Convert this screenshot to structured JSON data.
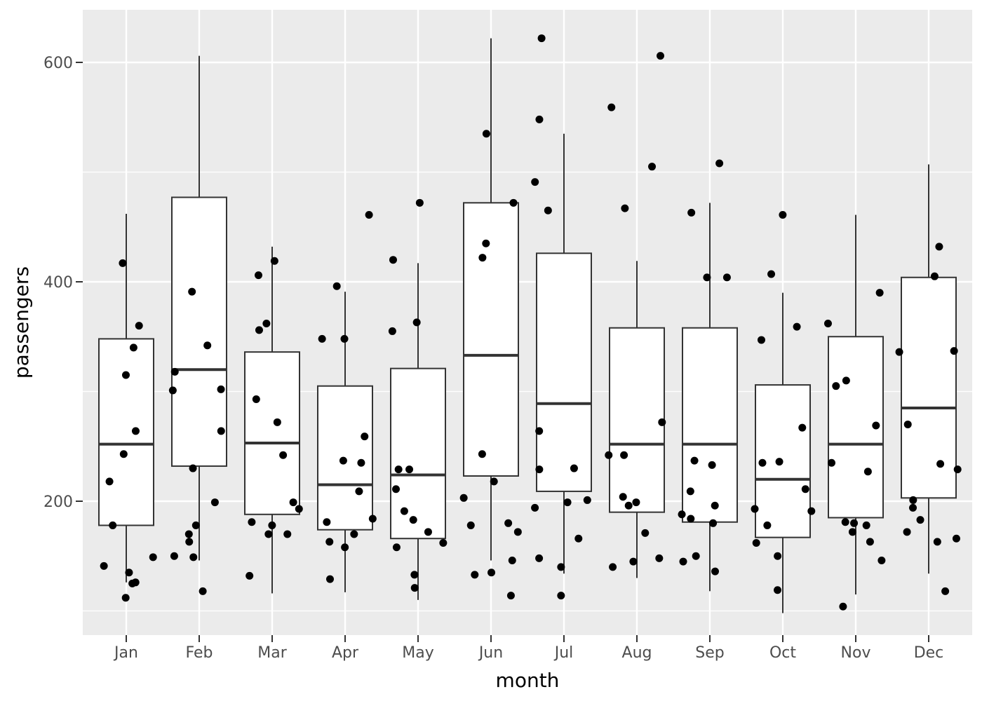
{
  "chart_data": {
    "type": "box",
    "xlabel": "month",
    "ylabel": "passengers",
    "y_ticks": [
      200,
      400,
      600
    ],
    "grid": true,
    "colors": {
      "panel_background": "#ebebeb",
      "gridline": "#ffffff",
      "box_fill": "#ffffff",
      "box_stroke": "#333333",
      "point": "#000000"
    },
    "categories": [
      "Jan",
      "Feb",
      "Mar",
      "Apr",
      "May",
      "Jun",
      "Jul",
      "Aug",
      "Sep",
      "Oct",
      "Nov",
      "Dec"
    ],
    "boxes": [
      {
        "min": 126,
        "q1": 178,
        "median": 252,
        "q3": 348,
        "max": 462
      },
      {
        "min": 146,
        "q1": 232,
        "median": 320,
        "q3": 477,
        "max": 606
      },
      {
        "min": 116,
        "q1": 188,
        "median": 253,
        "q3": 336,
        "max": 432
      },
      {
        "min": 117,
        "q1": 174,
        "median": 215,
        "q3": 305,
        "max": 391
      },
      {
        "min": 110,
        "q1": 166,
        "median": 224,
        "q3": 321,
        "max": 417
      },
      {
        "min": 146,
        "q1": 223,
        "median": 333,
        "q3": 472,
        "max": 622
      },
      {
        "min": 134,
        "q1": 209,
        "median": 289,
        "q3": 426,
        "max": 535
      },
      {
        "min": 130,
        "q1": 190,
        "median": 252,
        "q3": 358,
        "max": 419
      },
      {
        "min": 118,
        "q1": 181,
        "median": 252,
        "q3": 358,
        "max": 472
      },
      {
        "min": 98,
        "q1": 167,
        "median": 220,
        "q3": 306,
        "max": 390
      },
      {
        "min": 115,
        "q1": 185,
        "median": 252,
        "q3": 350,
        "max": 461
      },
      {
        "min": 134,
        "q1": 203,
        "median": 285,
        "q3": 404,
        "max": 507
      }
    ],
    "points": [
      [
        112,
        118,
        132,
        129,
        121,
        135,
        148,
        148,
        136,
        119,
        104,
        118
      ],
      [
        126,
        150,
        178,
        163,
        172,
        178,
        199,
        199,
        184,
        162,
        146,
        166
      ],
      [
        141,
        178,
        193,
        181,
        183,
        218,
        230,
        242,
        209,
        191,
        172,
        194
      ],
      [
        135,
        163,
        181,
        235,
        229,
        243,
        264,
        272,
        237,
        211,
        180,
        201
      ],
      [
        125,
        149,
        170,
        170,
        158,
        133,
        114,
        140,
        145,
        150,
        178,
        163
      ],
      [
        149,
        170,
        170,
        158,
        133,
        114,
        140,
        145,
        150,
        178,
        163,
        172
      ],
      [
        178,
        199,
        199,
        184,
        162,
        146,
        166,
        171,
        180,
        193,
        181,
        183
      ],
      [
        218,
        230,
        242,
        209,
        191,
        172,
        194,
        196,
        196,
        236,
        235,
        229
      ],
      [
        243,
        264,
        272,
        237,
        211,
        180,
        201,
        204,
        188,
        235,
        227,
        234
      ],
      [
        264,
        302,
        293,
        259,
        229,
        203,
        229,
        242,
        233,
        267,
        269,
        270
      ],
      [
        315,
        301,
        356,
        348,
        355,
        422,
        465,
        467,
        404,
        347,
        305,
        336
      ],
      [
        340,
        318,
        362,
        348,
        363,
        435,
        491,
        505,
        404,
        359,
        310,
        337
      ],
      [
        360,
        342,
        406,
        396,
        420,
        472,
        548,
        559,
        463,
        407,
        362,
        405
      ],
      [
        417,
        391,
        419,
        461,
        472,
        535,
        622,
        606,
        508,
        461,
        390,
        432
      ]
    ]
  }
}
